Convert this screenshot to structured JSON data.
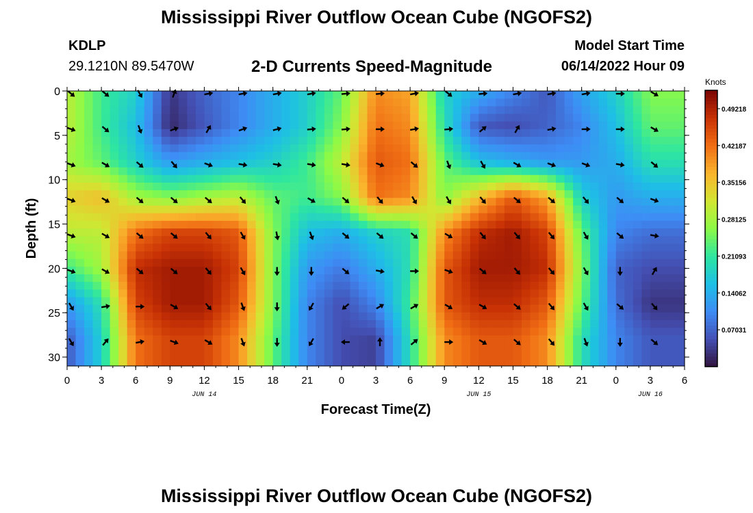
{
  "header": {
    "title": "Mississippi River Outflow Ocean Cube (NGOFS2)",
    "station_id": "KDLP",
    "station_coords": "29.1210N  89.5470W",
    "product": "2-D Currents Speed-Magnitude",
    "model_start_label": "Model Start Time",
    "model_start_value": "06/14/2022 Hour 09"
  },
  "footer": {
    "title": "Mississippi River Outflow Ocean Cube (NGOFS2)"
  },
  "chart_data": {
    "type": "heatmap",
    "xlabel": "Forecast Time(Z)",
    "ylabel": "Depth (ft)",
    "x_ticks": [
      "0",
      "3",
      "6",
      "9",
      "12",
      "15",
      "18",
      "21",
      "0",
      "3",
      "6",
      "9",
      "12",
      "15",
      "18",
      "21",
      "0",
      "3",
      "6"
    ],
    "date_labels": [
      {
        "label": "JUN 14",
        "hour": 12
      },
      {
        "label": "JUN 15",
        "hour": 36
      },
      {
        "label": "JUN 16",
        "hour": 51
      }
    ],
    "x_range_hours": [
      0,
      54
    ],
    "y_ticks": [
      0,
      5,
      10,
      15,
      20,
      25,
      30
    ],
    "ylim": [
      0,
      31
    ],
    "colorbar": {
      "unit": "Knots",
      "ticks": [
        "0.07031",
        "0.14062",
        "0.21093",
        "0.28125",
        "0.35156",
        "0.42187",
        "0.49218"
      ],
      "range": [
        0,
        0.5273
      ]
    },
    "vector_columns_hours": [
      0,
      3,
      6,
      9,
      12,
      15,
      18,
      21,
      24,
      27,
      30,
      33,
      36,
      39,
      42,
      45,
      48,
      51
    ],
    "vector_rows_ft": [
      0,
      4,
      8,
      12,
      16,
      20,
      24,
      28
    ],
    "vectors_dir_deg": [
      [
        -40,
        -40,
        -60,
        70,
        10,
        10,
        10,
        10,
        5,
        5,
        10,
        -40,
        5,
        10,
        10,
        10,
        0,
        -30
      ],
      [
        -20,
        -40,
        -70,
        20,
        60,
        20,
        15,
        5,
        5,
        0,
        10,
        5,
        40,
        60,
        10,
        0,
        0,
        -30
      ],
      [
        -20,
        -30,
        -40,
        -50,
        -20,
        -10,
        -10,
        -10,
        -10,
        -20,
        -40,
        -70,
        -60,
        -30,
        -20,
        -20,
        -10,
        -40
      ],
      [
        -20,
        -30,
        -40,
        -40,
        -40,
        -50,
        -70,
        -30,
        -40,
        -50,
        -60,
        -60,
        -50,
        -40,
        -40,
        -50,
        -40,
        -20
      ],
      [
        -20,
        -30,
        -40,
        -40,
        -50,
        -60,
        -80,
        -70,
        -40,
        -40,
        -40,
        -30,
        -50,
        -50,
        -50,
        -60,
        -40,
        -10
      ],
      [
        -20,
        -30,
        -40,
        -40,
        -50,
        -60,
        -90,
        -90,
        -40,
        -10,
        0,
        -20,
        -40,
        -50,
        -50,
        -60,
        -90,
        60
      ],
      [
        -60,
        10,
        0,
        -30,
        -50,
        -70,
        -90,
        -120,
        -140,
        30,
        30,
        -30,
        -30,
        -40,
        -50,
        -60,
        -40,
        -50
      ],
      [
        -60,
        50,
        10,
        -20,
        -30,
        -70,
        -90,
        -120,
        180,
        90,
        40,
        0,
        -30,
        -40,
        -50,
        -70,
        -90,
        -40
      ]
    ],
    "speed_grid_knots": [
      [
        0.3,
        0.22,
        0.18,
        0.03,
        0.07,
        0.1,
        0.14,
        0.18,
        0.24,
        0.4,
        0.38,
        0.18,
        0.14,
        0.1,
        0.06,
        0.13,
        0.18,
        0.26
      ],
      [
        0.3,
        0.22,
        0.16,
        0.02,
        0.06,
        0.1,
        0.14,
        0.18,
        0.26,
        0.42,
        0.4,
        0.2,
        0.06,
        0.05,
        0.07,
        0.1,
        0.16,
        0.24
      ],
      [
        0.28,
        0.24,
        0.18,
        0.12,
        0.14,
        0.16,
        0.18,
        0.22,
        0.3,
        0.44,
        0.42,
        0.24,
        0.16,
        0.14,
        0.12,
        0.12,
        0.14,
        0.2
      ],
      [
        0.34,
        0.36,
        0.28,
        0.26,
        0.28,
        0.3,
        0.24,
        0.22,
        0.26,
        0.42,
        0.4,
        0.26,
        0.36,
        0.44,
        0.38,
        0.18,
        0.12,
        0.14
      ],
      [
        0.3,
        0.3,
        0.42,
        0.46,
        0.46,
        0.44,
        0.26,
        0.16,
        0.14,
        0.18,
        0.2,
        0.4,
        0.48,
        0.5,
        0.46,
        0.24,
        0.1,
        0.08
      ],
      [
        0.22,
        0.28,
        0.48,
        0.5,
        0.5,
        0.46,
        0.26,
        0.12,
        0.09,
        0.14,
        0.2,
        0.44,
        0.5,
        0.5,
        0.48,
        0.26,
        0.07,
        0.05
      ],
      [
        0.12,
        0.2,
        0.46,
        0.5,
        0.5,
        0.44,
        0.26,
        0.1,
        0.05,
        0.1,
        0.22,
        0.44,
        0.48,
        0.48,
        0.44,
        0.24,
        0.08,
        0.03
      ],
      [
        0.06,
        0.18,
        0.42,
        0.46,
        0.46,
        0.4,
        0.24,
        0.1,
        0.05,
        0.04,
        0.2,
        0.4,
        0.44,
        0.44,
        0.4,
        0.2,
        0.1,
        0.06
      ]
    ]
  }
}
